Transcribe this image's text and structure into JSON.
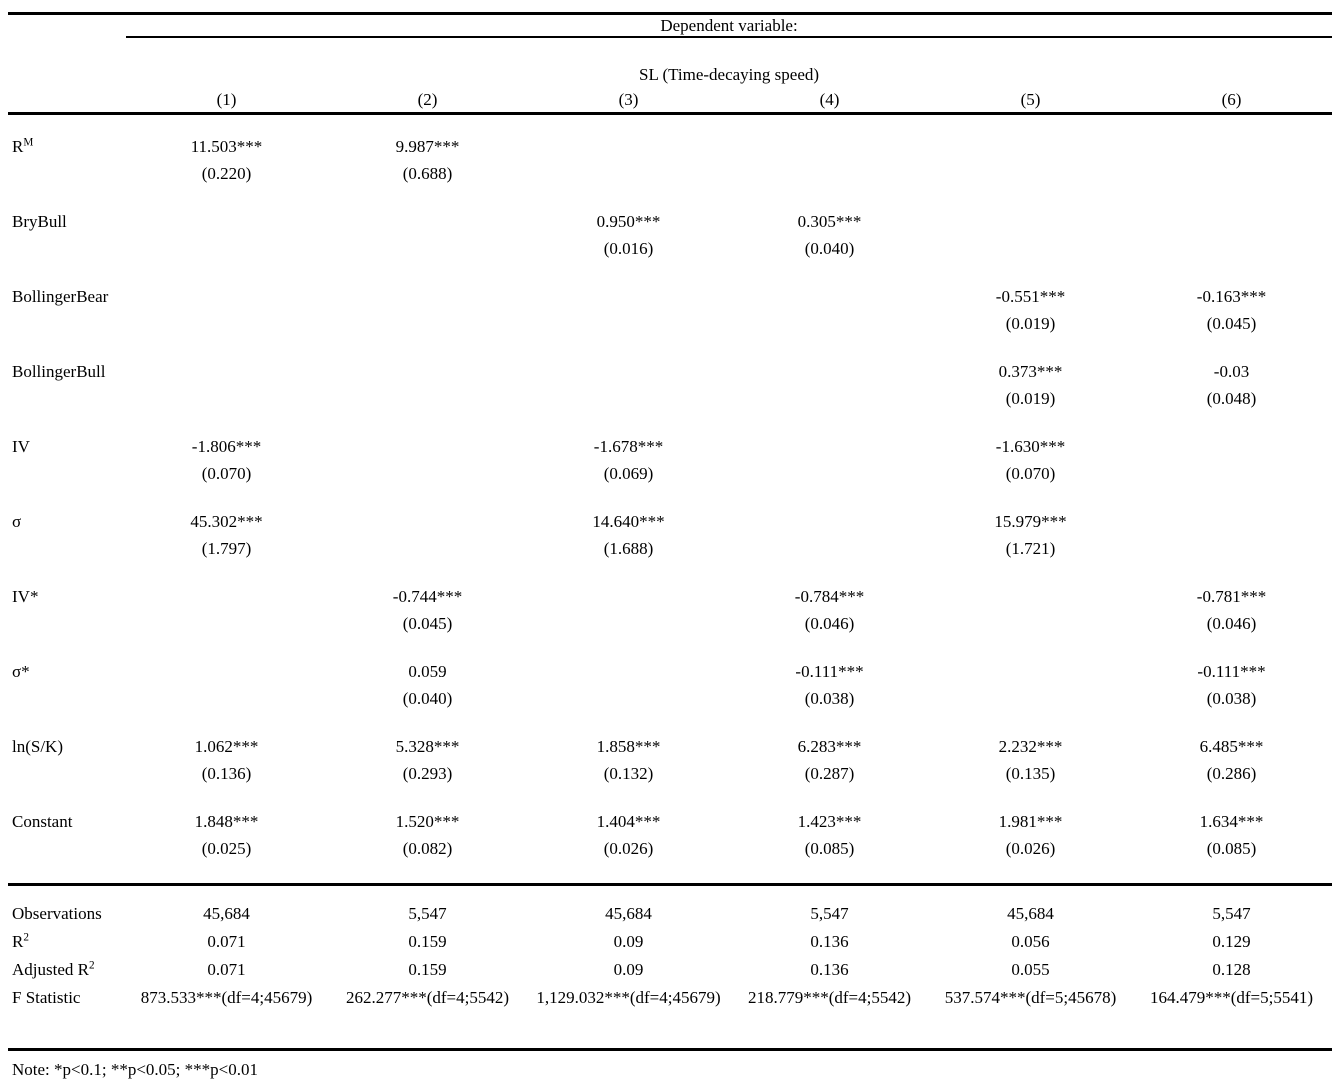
{
  "table": {
    "header": {
      "dependent_variable_caption": "Dependent variable:",
      "dependent_variable_name": "SL (Time-decaying speed)",
      "column_numbers": [
        "(1)",
        "(2)",
        "(3)",
        "(4)",
        "(5)",
        "(6)"
      ]
    },
    "coefficient_rows": [
      {
        "label": "R",
        "label_sup": "M",
        "cells": [
          {
            "coef": "11.503***",
            "se": "(0.220)"
          },
          {
            "coef": "9.987***",
            "se": "(0.688)"
          },
          null,
          null,
          null,
          null
        ]
      },
      {
        "label": "BryBull",
        "cells": [
          null,
          null,
          {
            "coef": "0.950***",
            "se": "(0.016)"
          },
          {
            "coef": "0.305***",
            "se": "(0.040)"
          },
          null,
          null
        ]
      },
      {
        "label": "BollingerBear",
        "cells": [
          null,
          null,
          null,
          null,
          {
            "coef": "-0.551***",
            "se": "(0.019)"
          },
          {
            "coef": "-0.163***",
            "se": "(0.045)"
          }
        ]
      },
      {
        "label": "BollingerBull",
        "cells": [
          null,
          null,
          null,
          null,
          {
            "coef": "0.373***",
            "se": "(0.019)"
          },
          {
            "coef": "-0.03",
            "se": "(0.048)"
          }
        ]
      },
      {
        "label": "IV",
        "cells": [
          {
            "coef": "-1.806***",
            "se": "(0.070)"
          },
          null,
          {
            "coef": "-1.678***",
            "se": "(0.069)"
          },
          null,
          {
            "coef": "-1.630***",
            "se": "(0.070)"
          },
          null
        ]
      },
      {
        "label": "σ",
        "cells": [
          {
            "coef": "45.302***",
            "se": "(1.797)"
          },
          null,
          {
            "coef": "14.640***",
            "se": "(1.688)"
          },
          null,
          {
            "coef": "15.979***",
            "se": "(1.721)"
          },
          null
        ]
      },
      {
        "label": "IV*",
        "cells": [
          null,
          {
            "coef": "-0.744***",
            "se": "(0.045)"
          },
          null,
          {
            "coef": "-0.784***",
            "se": "(0.046)"
          },
          null,
          {
            "coef": "-0.781***",
            "se": "(0.046)"
          }
        ]
      },
      {
        "label": "σ*",
        "cells": [
          null,
          {
            "coef": "0.059",
            "se": "(0.040)"
          },
          null,
          {
            "coef": "-0.111***",
            "se": "(0.038)"
          },
          null,
          {
            "coef": "-0.111***",
            "se": "(0.038)"
          }
        ]
      },
      {
        "label": "ln(S/K)",
        "cells": [
          {
            "coef": "1.062***",
            "se": "(0.136)"
          },
          {
            "coef": "5.328***",
            "se": "(0.293)"
          },
          {
            "coef": "1.858***",
            "se": "(0.132)"
          },
          {
            "coef": "6.283***",
            "se": "(0.287)"
          },
          {
            "coef": "2.232***",
            "se": "(0.135)"
          },
          {
            "coef": "6.485***",
            "se": "(0.286)"
          }
        ]
      },
      {
        "label": "Constant",
        "cells": [
          {
            "coef": "1.848***",
            "se": "(0.025)"
          },
          {
            "coef": "1.520***",
            "se": "(0.082)"
          },
          {
            "coef": "1.404***",
            "se": "(0.026)"
          },
          {
            "coef": "1.423***",
            "se": "(0.085)"
          },
          {
            "coef": "1.981***",
            "se": "(0.026)"
          },
          {
            "coef": "1.634***",
            "se": "(0.085)"
          }
        ]
      }
    ],
    "summary_rows": [
      {
        "label": "Observations",
        "values": [
          "45,684",
          "5,547",
          "45,684",
          "5,547",
          "45,684",
          "5,547"
        ]
      },
      {
        "label": "R",
        "label_sup": "2",
        "values": [
          "0.071",
          "0.159",
          "0.09",
          "0.136",
          "0.056",
          "0.129"
        ]
      },
      {
        "label": "Adjusted R",
        "label_sup": "2",
        "values": [
          "0.071",
          "0.159",
          "0.09",
          "0.136",
          "0.055",
          "0.128"
        ]
      },
      {
        "label": "F Statistic",
        "values": [
          "873.533***(df=4;45679)",
          "262.277***(df=4;5542)",
          "1,129.032***(df=4;45679)",
          "218.779***(df=4;5542)",
          "537.574***(df=5;45678)",
          "164.479***(df=5;5541)"
        ]
      }
    ],
    "note": "Note: *p<0.1; **p<0.05; ***p<0.01"
  }
}
